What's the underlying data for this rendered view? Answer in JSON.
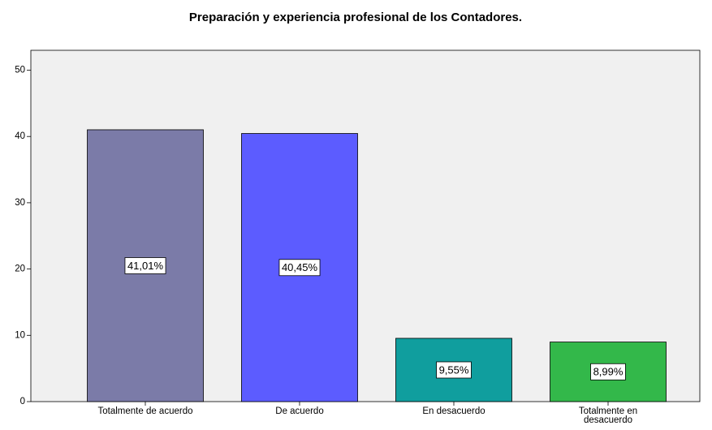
{
  "chart_data": {
    "type": "bar",
    "title": "Preparación y experiencia profesional de los Contadores.",
    "categories": [
      "Totalmente de acuerdo",
      "De acuerdo",
      "En desacuerdo",
      "Totalmente en desacuerdo"
    ],
    "values": [
      41.01,
      40.45,
      9.55,
      8.99
    ],
    "value_labels": [
      "41,01%",
      "40,45%",
      "9,55%",
      "8,99%"
    ],
    "colors": [
      "#7b7ba8",
      "#5c5cff",
      "#109e9e",
      "#33b84a"
    ],
    "ylim": [
      0,
      53
    ],
    "yticks": [
      0,
      10,
      20,
      30,
      40,
      50
    ]
  }
}
